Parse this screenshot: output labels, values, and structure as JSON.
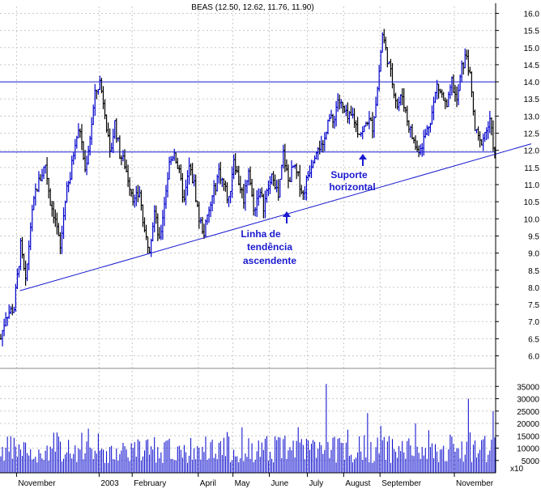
{
  "chart_data": {
    "type": "ohlc_bar_with_volume",
    "title": "BEAS (12.50, 12.62, 11.76, 11.90)",
    "price_axis": {
      "ylim": [
        5.8,
        16.2
      ],
      "ticks": [
        "16.0",
        "15.5",
        "15.0",
        "14.5",
        "14.0",
        "13.5",
        "13.0",
        "12.5",
        "12.0",
        "11.5",
        "11.0",
        "10.5",
        "10.0",
        "9.5",
        "9.0",
        "8.5",
        "8.0",
        "7.5",
        "7.0",
        "6.5",
        "6.0"
      ],
      "tick_values": [
        16.0,
        15.5,
        15.0,
        14.5,
        14.0,
        13.5,
        13.0,
        12.5,
        12.0,
        11.5,
        11.0,
        10.5,
        10.0,
        9.5,
        9.0,
        8.5,
        8.0,
        7.5,
        7.0,
        6.5,
        6.0
      ]
    },
    "volume_axis": {
      "ylim": [
        0,
        40000
      ],
      "ticks": [
        "35000",
        "30000",
        "25000",
        "20000",
        "15000",
        "10000",
        "5000"
      ],
      "tick_values": [
        35000,
        30000,
        25000,
        20000,
        15000,
        10000,
        5000
      ],
      "multiplier_label": "x10"
    },
    "x_months": [
      {
        "label": "November",
        "day": 10
      },
      {
        "label": "2003",
        "day": 60
      },
      {
        "label": "February",
        "day": 80
      },
      {
        "label": "April",
        "day": 120
      },
      {
        "label": "May",
        "day": 141
      },
      {
        "label": "June",
        "day": 163
      },
      {
        "label": "July",
        "day": 186
      },
      {
        "label": "August",
        "day": 208
      },
      {
        "label": "September",
        "day": 230
      },
      {
        "label": "November",
        "day": 275
      }
    ],
    "x_range": [
      0,
      300
    ],
    "price_closes_keypoints": [
      [
        0,
        6.5
      ],
      [
        3,
        7.2
      ],
      [
        8,
        7.4
      ],
      [
        12,
        9.2
      ],
      [
        15,
        8.1
      ],
      [
        18,
        9.8
      ],
      [
        21,
        10.8
      ],
      [
        24,
        11.2
      ],
      [
        27,
        11.6
      ],
      [
        30,
        10.5
      ],
      [
        33,
        10.0
      ],
      [
        36,
        9.1
      ],
      [
        39,
        10.6
      ],
      [
        42,
        11.2
      ],
      [
        45,
        12.3
      ],
      [
        48,
        12.6
      ],
      [
        51,
        11.4
      ],
      [
        54,
        12.4
      ],
      [
        57,
        13.6
      ],
      [
        60,
        14.0
      ],
      [
        63,
        13.2
      ],
      [
        66,
        11.8
      ],
      [
        69,
        12.8
      ],
      [
        72,
        11.9
      ],
      [
        75,
        11.6
      ],
      [
        78,
        11.0
      ],
      [
        81,
        10.5
      ],
      [
        84,
        10.8
      ],
      [
        87,
        9.5
      ],
      [
        90,
        9.2
      ],
      [
        93,
        10.2
      ],
      [
        96,
        9.3
      ],
      [
        99,
        10.5
      ],
      [
        102,
        11.6
      ],
      [
        105,
        12.0
      ],
      [
        108,
        11.3
      ],
      [
        111,
        10.5
      ],
      [
        114,
        11.5
      ],
      [
        117,
        11.0
      ],
      [
        120,
        10.0
      ],
      [
        123,
        9.6
      ],
      [
        126,
        10.2
      ],
      [
        129,
        10.8
      ],
      [
        132,
        11.4
      ],
      [
        135,
        11.0
      ],
      [
        138,
        10.5
      ],
      [
        141,
        11.8
      ],
      [
        144,
        11.1
      ],
      [
        147,
        10.6
      ],
      [
        150,
        11.5
      ],
      [
        153,
        10.2
      ],
      [
        156,
        10.8
      ],
      [
        159,
        10.4
      ],
      [
        162,
        10.9
      ],
      [
        165,
        11.3
      ],
      [
        168,
        10.6
      ],
      [
        171,
        11.9
      ],
      [
        174,
        11.1
      ],
      [
        177,
        11.5
      ],
      [
        180,
        11.2
      ],
      [
        183,
        10.7
      ],
      [
        186,
        11.3
      ],
      [
        189,
        11.8
      ],
      [
        192,
        12.2
      ],
      [
        195,
        12.0
      ],
      [
        198,
        13.0
      ],
      [
        201,
        12.8
      ],
      [
        204,
        13.5
      ],
      [
        207,
        13.2
      ],
      [
        210,
        12.9
      ],
      [
        213,
        13.0
      ],
      [
        216,
        12.6
      ],
      [
        219,
        12.5
      ],
      [
        222,
        12.9
      ],
      [
        225,
        12.7
      ],
      [
        228,
        13.8
      ],
      [
        231,
        15.4
      ],
      [
        234,
        14.7
      ],
      [
        237,
        14.0
      ],
      [
        240,
        13.3
      ],
      [
        243,
        13.6
      ],
      [
        246,
        12.9
      ],
      [
        249,
        12.4
      ],
      [
        252,
        12.0
      ],
      [
        255,
        12.2
      ],
      [
        258,
        12.6
      ],
      [
        261,
        13.1
      ],
      [
        264,
        13.9
      ],
      [
        267,
        13.6
      ],
      [
        270,
        13.2
      ],
      [
        273,
        14.0
      ],
      [
        276,
        13.4
      ],
      [
        279,
        14.4
      ],
      [
        282,
        14.8
      ],
      [
        284,
        14.1
      ],
      [
        287,
        12.6
      ],
      [
        290,
        12.2
      ],
      [
        293,
        12.5
      ],
      [
        296,
        12.8
      ],
      [
        299,
        11.9
      ]
    ],
    "reference_lines": {
      "resistance": 14.0,
      "support": 11.95,
      "trendline": [
        [
          12,
          7.9
        ],
        [
          300,
          12.05
        ]
      ]
    },
    "annotations": {
      "support_label_1": "Suporte",
      "support_label_2": "horizontal",
      "trend_label_1": "Linha de",
      "trend_label_2": "tendência",
      "trend_label_3": "ascendente"
    },
    "colors": {
      "bars_primary": "#0000cc",
      "bars_secondary": "#000000",
      "lines": "#1a1ad0",
      "grid": "#c8c8c8",
      "axis": "#000000"
    },
    "grid": true
  }
}
